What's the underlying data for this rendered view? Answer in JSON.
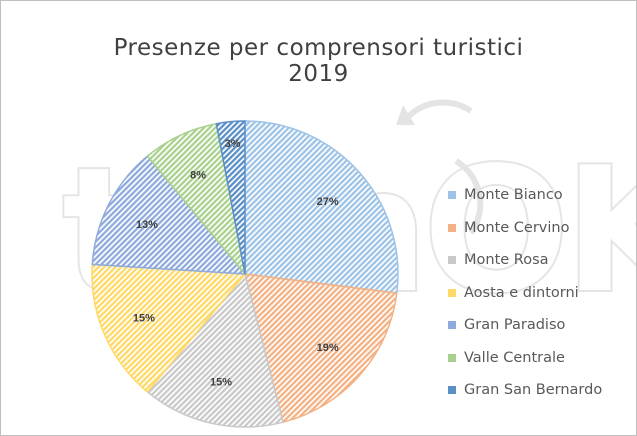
{
  "chart_data": {
    "type": "pie",
    "title": "Presenze per comprensori turistici",
    "subtitle": "2019",
    "categories": [
      "Monte Bianco",
      "Monte Cervino",
      "Monte Rosa",
      "Aosta e dintorni",
      "Gran Paradiso",
      "Valle Centrale",
      "Gran San Bernardo"
    ],
    "values": [
      27,
      19,
      15,
      15,
      13,
      8,
      3
    ],
    "data_labels": [
      "27%",
      "19%",
      "15%",
      "15%",
      "13%",
      "8%",
      "3%"
    ],
    "colors": [
      "#9dc3e6",
      "#f4b183",
      "#c9c9c9",
      "#ffd966",
      "#8faadc",
      "#a9d18e",
      "#5b8fc7"
    ],
    "legend_position": "right"
  },
  "watermark": "tinnOK"
}
